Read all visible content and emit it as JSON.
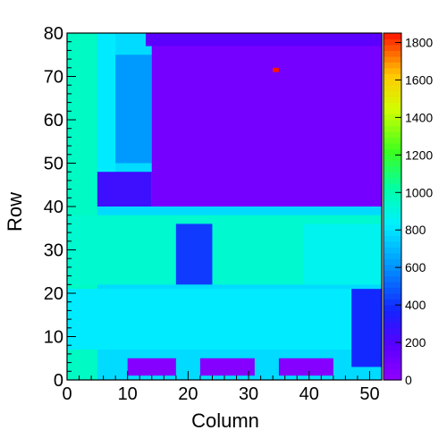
{
  "chart_data": {
    "type": "heatmap",
    "title": "",
    "xlabel": "Column",
    "ylabel": "Row",
    "xlim": [
      0,
      52
    ],
    "ylim": [
      0,
      80
    ],
    "zlim": [
      0,
      1850
    ],
    "x_ticks": [
      0,
      10,
      20,
      30,
      40,
      50
    ],
    "y_ticks": [
      0,
      10,
      20,
      30,
      40,
      50,
      60,
      70,
      80
    ],
    "z_ticks": [
      0,
      200,
      400,
      600,
      800,
      1000,
      1200,
      1400,
      1600,
      1800
    ],
    "colorbar": "right",
    "grid": false,
    "region_values": [
      {
        "region": "background",
        "columns": [
          0,
          52
        ],
        "rows": [
          0,
          80
        ],
        "value": 780
      },
      {
        "region": "left-strip",
        "columns": [
          0,
          5
        ],
        "rows": [
          0,
          80
        ],
        "value": 960
      },
      {
        "region": "upper-left",
        "columns": [
          5,
          8
        ],
        "rows": [
          42,
          80
        ],
        "value": 820
      },
      {
        "region": "upper-inner-left",
        "columns": [
          8,
          14
        ],
        "rows": [
          50,
          75
        ],
        "value": 620
      },
      {
        "region": "upper-block",
        "columns": [
          14,
          52
        ],
        "rows": [
          40,
          80
        ],
        "value": 90
      },
      {
        "region": "block-top-rows",
        "columns": [
          13,
          52
        ],
        "rows": [
          77,
          80
        ],
        "value": 180
      },
      {
        "region": "block-bottom",
        "columns": [
          5,
          14
        ],
        "rows": [
          40,
          48
        ],
        "value": 260
      },
      {
        "region": "mid-band",
        "columns": [
          0,
          52
        ],
        "rows": [
          22,
          38
        ],
        "value": 940
      },
      {
        "region": "mid-gap-1",
        "columns": [
          18,
          24
        ],
        "rows": [
          22,
          36
        ],
        "value": 420
      },
      {
        "region": "mid-gap-2",
        "columns": [
          39,
          52
        ],
        "rows": [
          22,
          36
        ],
        "value": 870
      },
      {
        "region": "lower-band",
        "columns": [
          0,
          52
        ],
        "rows": [
          7,
          21
        ],
        "value": 820
      },
      {
        "region": "lower-right",
        "columns": [
          47,
          52
        ],
        "rows": [
          3,
          21
        ],
        "value": 380
      },
      {
        "region": "bottom-pad-1",
        "columns": [
          10,
          18
        ],
        "rows": [
          1,
          5
        ],
        "value": 40
      },
      {
        "region": "bottom-pad-2",
        "columns": [
          22,
          31
        ],
        "rows": [
          1,
          5
        ],
        "value": 40
      },
      {
        "region": "bottom-pad-3",
        "columns": [
          35,
          44
        ],
        "rows": [
          1,
          5
        ],
        "value": 40
      },
      {
        "region": "hot-pixel",
        "columns": [
          34,
          35
        ],
        "rows": [
          71,
          72
        ],
        "value": 1850
      }
    ]
  }
}
